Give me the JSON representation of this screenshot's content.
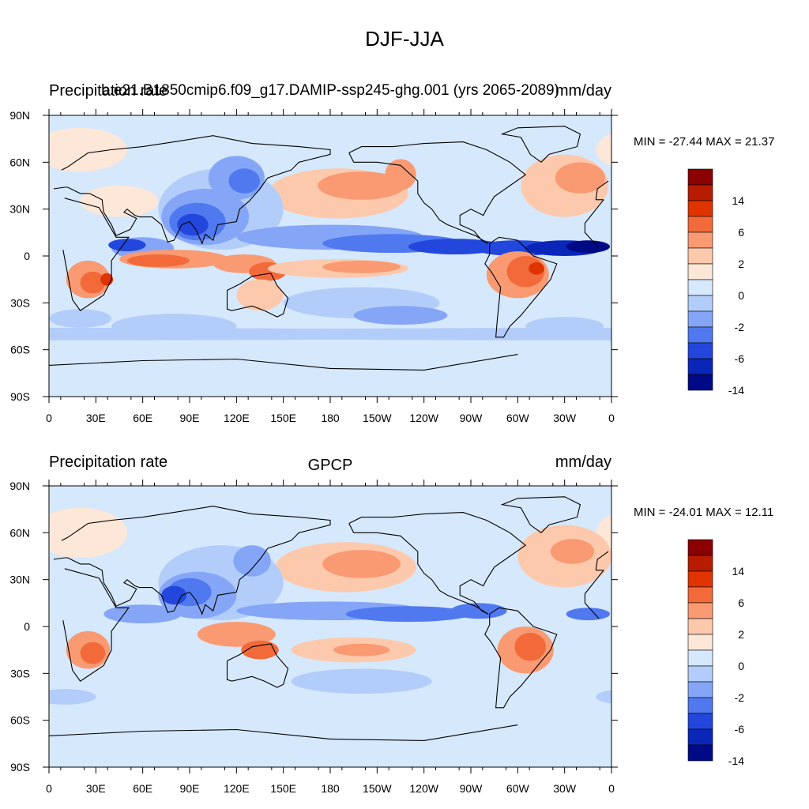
{
  "figure": {
    "title": "DJF-JJA"
  },
  "x_tick_labels": [
    "0",
    "30E",
    "60E",
    "90E",
    "120E",
    "150E",
    "180",
    "150W",
    "120W",
    "90W",
    "60W",
    "30W",
    "0"
  ],
  "y_tick_labels": [
    "90N",
    "60N",
    "30N",
    "0",
    "30S",
    "60S",
    "90S"
  ],
  "panels": [
    {
      "left_title": "Precipitation rate",
      "center_title": "b.e21.B1850cmip6.f09_g17.DAMIP-ssp245-ghg.001 (yrs 2065-2089)",
      "right_title": "mm/day",
      "min_max": "MIN = -27.44 MAX =  21.37",
      "colorbar_labels": [
        "14",
        "6",
        "2",
        "0",
        "-2",
        "-6",
        "-14"
      ],
      "colorbar_colors": [
        "#8b0000",
        "#b81c00",
        "#e03400",
        "#f36a3a",
        "#f99a72",
        "#fdc9ad",
        "#fde7d8",
        "#d6e8fb",
        "#b3cdfa",
        "#85a6f7",
        "#5079f0",
        "#2347dd",
        "#0a26b8",
        "#000a87"
      ]
    },
    {
      "left_title": "Precipitation rate",
      "center_title": "GPCP",
      "right_title": "mm/day",
      "min_max": "MIN = -24.01 MAX =  12.11",
      "colorbar_labels": [
        "14",
        "6",
        "2",
        "0",
        "-2",
        "-6",
        "-14"
      ],
      "colorbar_colors": [
        "#8b0000",
        "#b81c00",
        "#e03400",
        "#f36a3a",
        "#f99a72",
        "#fdc9ad",
        "#fde7d8",
        "#d6e8fb",
        "#b3cdfa",
        "#85a6f7",
        "#5079f0",
        "#2347dd",
        "#0a26b8",
        "#000a87"
      ]
    }
  ]
}
